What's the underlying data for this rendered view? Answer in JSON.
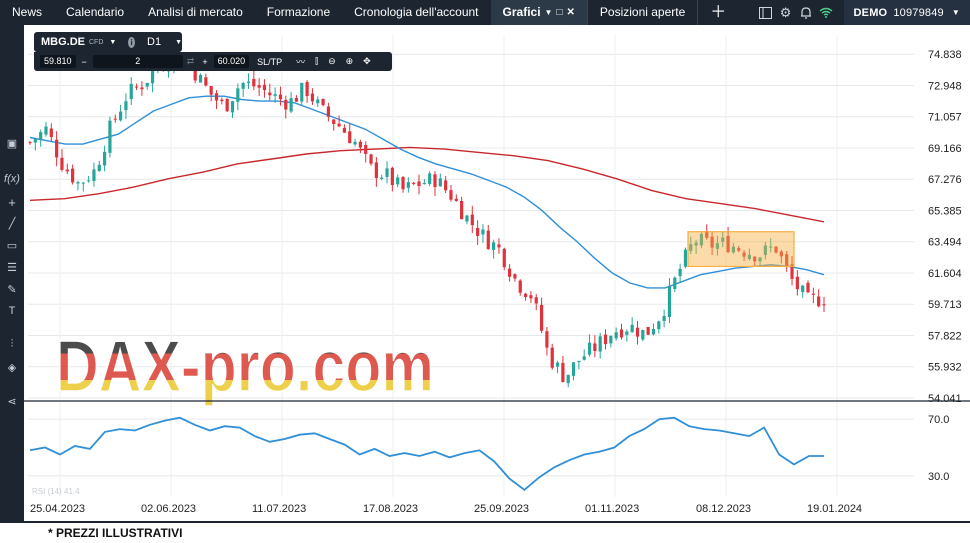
{
  "topbar": {
    "items": [
      {
        "label": "News"
      },
      {
        "label": "Calendario"
      },
      {
        "label": "Analisi di mercato"
      },
      {
        "label": "Formazione"
      },
      {
        "label": "Cronologia dell'account"
      },
      {
        "label": "Grafici"
      },
      {
        "label": "Posizioni aperte"
      }
    ],
    "account_label": "DEMO",
    "account_number": "10979849"
  },
  "symbol_bar": {
    "symbol": "MBG.DE",
    "instrument_type": "CFD",
    "timeframe": "D1"
  },
  "order_bar": {
    "sell_price": "59.810",
    "quantity": "2",
    "buy_price": "60.020",
    "sltp_label": "SL/TP"
  },
  "watermark": "DAX-pro.com",
  "footer": "* PREZZI ILLUSTRATIVI",
  "colors": {
    "bull": "#26a69a",
    "bear": "#e0323d",
    "ma_fast": "#2f8fd8",
    "ma_slow": "#c8282c",
    "rsi": "#2f8fd8",
    "highlight": "#f5b041"
  },
  "icons": [
    "layout-icon",
    "settings-icon",
    "bell-icon",
    "wifi-icon",
    "function-icon",
    "crosshair-icon",
    "line-icon",
    "rectangle-icon",
    "fibonacci-icon",
    "text-icon",
    "indicators-icon",
    "layers-icon",
    "share-icon"
  ],
  "chart_data": {
    "type": "candlestick",
    "ylim": [
      54.041,
      76.0
    ],
    "y_ticks": [
      "74.838",
      "72.948",
      "71.057",
      "69.166",
      "67.276",
      "65.385",
      "63.494",
      "61.604",
      "59.713",
      "57.822",
      "55.932",
      "54.041"
    ],
    "x_ticks": [
      "25.04.2023",
      "02.06.2023",
      "11.07.2023",
      "17.08.2023",
      "25.09.2023",
      "01.11.2023",
      "08.12.2023",
      "19.01.2024"
    ],
    "close_trend": [
      69.5,
      70.3,
      68.2,
      67.0,
      67.8,
      70.5,
      72.4,
      73.1,
      74.2,
      74.8,
      74.0,
      72.6,
      71.6,
      73.1,
      72.9,
      72.3,
      71.9,
      72.8,
      71.4,
      70.6,
      69.6,
      67.9,
      67.5,
      66.6,
      67.0,
      67.3,
      66.3,
      64.9,
      63.8,
      63.0,
      61.1,
      60.2,
      56.6,
      55.3,
      56.5,
      57.2,
      58.1,
      58.4,
      57.9,
      59.2,
      61.6,
      63.6,
      63.3,
      63.4,
      63.0,
      62.7,
      63.2,
      61.2,
      59.9,
      60.1
    ],
    "ma_fast": [
      69.8,
      69.6,
      69.4,
      69.4,
      69.7,
      70.0,
      70.7,
      71.4,
      71.8,
      72.2,
      72.3,
      72.3,
      72.1,
      72.0,
      72.0,
      71.9,
      71.5,
      71.1,
      70.7,
      70.3,
      69.7,
      69.1,
      68.6,
      68.2,
      67.9,
      67.6,
      67.2,
      66.8,
      66.2,
      65.4,
      64.4,
      63.5,
      62.5,
      61.6,
      61.0,
      60.7,
      60.7,
      61.1,
      61.5,
      61.7,
      61.9,
      62.0,
      62.1,
      62.0,
      61.8,
      61.5
    ],
    "ma_slow": [
      66.0,
      66.1,
      66.4,
      66.8,
      67.3,
      67.7,
      68.2,
      68.5,
      68.8,
      69.0,
      69.1,
      69.2,
      69.1,
      68.9,
      68.7,
      68.4,
      67.9,
      67.3,
      66.6,
      66.1,
      65.8,
      65.5,
      65.1,
      64.7
    ],
    "highlight_box": {
      "y_low": 62.0,
      "y_high": 64.1,
      "label": ""
    },
    "rsi": {
      "ylim": [
        15,
        80
      ],
      "y_ticks": [
        "70.0",
        "30.0"
      ],
      "label": "RSI (14) 41.4",
      "values": [
        48,
        50,
        45,
        51,
        49,
        61,
        63,
        62,
        66,
        69,
        71,
        66,
        62,
        65,
        64,
        58,
        54,
        56,
        59,
        60,
        56,
        52,
        45,
        49,
        44,
        46,
        44,
        47,
        43,
        46,
        48,
        40,
        28,
        20,
        29,
        36,
        41,
        45,
        47,
        50,
        58,
        63,
        70,
        71,
        65,
        63,
        62,
        60,
        58,
        64,
        45,
        38,
        44,
        44
      ]
    }
  }
}
